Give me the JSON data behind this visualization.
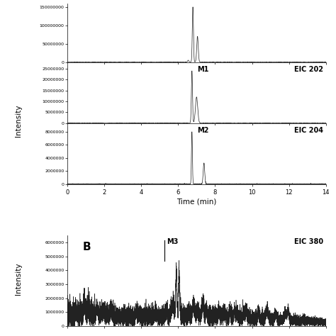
{
  "panels_A": [
    {
      "eic_label": "",
      "peak_label": "",
      "peak_time": 6.8,
      "peak_height": 150000000,
      "peak_sigma": 0.03,
      "second_peak_time": 7.05,
      "second_peak_height": 70000000,
      "second_sigma": 0.04,
      "ylim": [
        0,
        160000000
      ],
      "yticks": [
        0,
        50000000,
        100000000,
        150000000
      ],
      "noise_scale": 500000,
      "small_bump_time": 6.55,
      "small_bump_height": 5000000
    },
    {
      "eic_label": "EIC 202",
      "peak_label": "M1",
      "peak_time": 6.75,
      "peak_height": 24000000,
      "peak_sigma": 0.03,
      "second_peak_time": 7.0,
      "second_peak_height": 12000000,
      "second_sigma": 0.06,
      "ylim": [
        0,
        27000000
      ],
      "yticks": [
        0,
        5000000,
        10000000,
        15000000,
        20000000,
        25000000
      ],
      "noise_scale": 100000,
      "small_bump_time": null,
      "small_bump_height": 0
    },
    {
      "eic_label": "EIC 204",
      "peak_label": "M2",
      "peak_time": 6.75,
      "peak_height": 8000000,
      "peak_sigma": 0.025,
      "second_peak_time": 7.4,
      "second_peak_height": 3200000,
      "second_sigma": 0.04,
      "ylim": [
        0,
        9000000
      ],
      "yticks": [
        0,
        2000000,
        4000000,
        6000000,
        8000000
      ],
      "noise_scale": 80000,
      "small_bump_time": null,
      "small_bump_height": 0
    }
  ],
  "panel_B": {
    "eic_label": "EIC 380",
    "peak_label": "M3",
    "marker_time": 5.25,
    "peak_time": 5.9,
    "peak_height": 3000000,
    "peak_sigma": 0.03,
    "second_peak_time": 6.05,
    "second_peak_height": 2800000,
    "second_sigma": 0.025,
    "ylim": [
      0,
      6500000
    ],
    "yticks": [
      0,
      1000000,
      2000000,
      3000000,
      4000000,
      5000000,
      6000000
    ],
    "noise_baseline": 700000,
    "noise_scale": 350000
  },
  "xmin": 0,
  "xmax": 14,
  "xticks": [
    0,
    2,
    4,
    6,
    8,
    10,
    12,
    14
  ],
  "xlabel": "Time (min)",
  "ylabel": "Intensity",
  "line_color": "#222222",
  "bg_color": "#ffffff"
}
